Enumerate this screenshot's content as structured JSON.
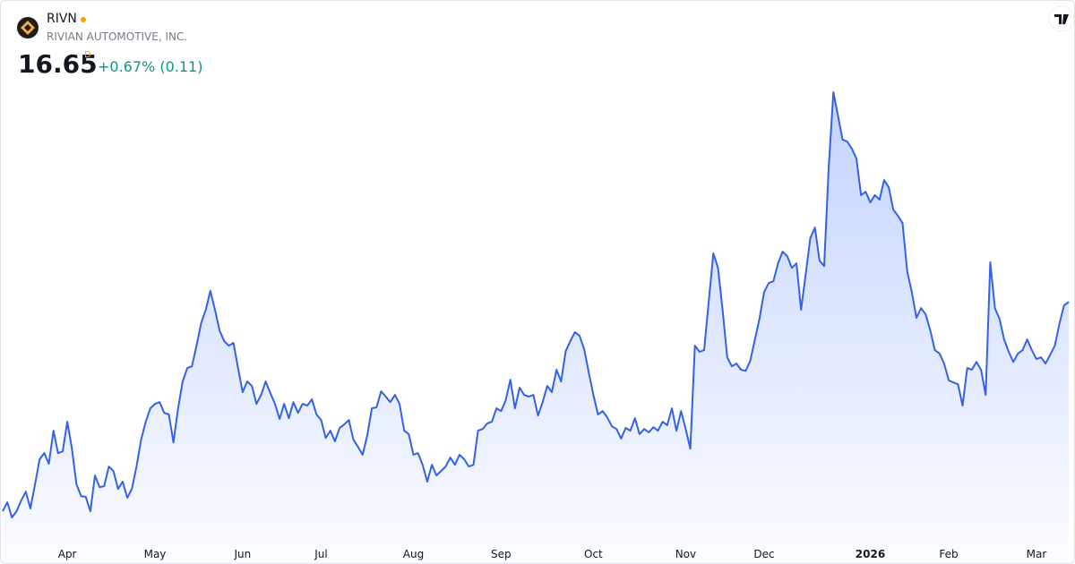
{
  "header": {
    "symbol": "RIVN",
    "name": "RIVIAN AUTOMOTIVE, INC.",
    "price": "16.65",
    "interval": "D",
    "change": "+0.67% (0.11)"
  },
  "chart_data": {
    "type": "area",
    "color": "#3461e6",
    "fill_color": "#2962ff",
    "values": [
      10.57,
      10.83,
      10.39,
      10.57,
      10.88,
      11.14,
      10.65,
      11.35,
      12.08,
      12.26,
      11.95,
      12.91,
      12.26,
      12.31,
      13.17,
      12.39,
      11.35,
      11.01,
      10.99,
      10.57,
      11.61,
      11.27,
      11.3,
      11.87,
      11.74,
      11.22,
      11.43,
      10.96,
      11.22,
      11.87,
      12.65,
      13.17,
      13.56,
      13.69,
      13.74,
      13.43,
      13.38,
      12.57,
      13.56,
      14.34,
      14.73,
      14.78,
      15.38,
      16.03,
      16.42,
      16.97,
      16.42,
      15.82,
      15.51,
      15.38,
      15.46,
      14.73,
      14.03,
      14.34,
      14.21,
      13.69,
      13.95,
      14.34,
      14.0,
      13.69,
      13.25,
      13.69,
      13.27,
      13.74,
      13.43,
      13.69,
      13.64,
      13.82,
      13.38,
      13.22,
      12.7,
      12.91,
      12.6,
      12.99,
      13.09,
      13.22,
      12.65,
      12.44,
      12.21,
      12.78,
      13.56,
      13.59,
      14.05,
      13.9,
      13.74,
      13.95,
      13.69,
      12.91,
      12.81,
      12.21,
      12.26,
      11.92,
      11.43,
      11.92,
      11.61,
      11.74,
      11.87,
      12.13,
      11.92,
      12.21,
      12.08,
      11.87,
      11.92,
      12.91,
      12.96,
      13.12,
      13.17,
      13.56,
      13.48,
      13.79,
      14.39,
      13.56,
      14.16,
      13.95,
      13.9,
      13.95,
      13.35,
      13.74,
      14.21,
      14.03,
      14.68,
      14.34,
      15.22,
      15.51,
      15.77,
      15.67,
      15.28,
      14.6,
      13.95,
      13.38,
      13.48,
      13.3,
      13.04,
      12.96,
      12.68,
      12.99,
      12.91,
      13.27,
      12.81,
      12.96,
      12.86,
      13.01,
      12.91,
      13.17,
      13.07,
      13.56,
      12.91,
      13.48,
      12.96,
      12.39,
      15.38,
      15.2,
      15.25,
      16.68,
      18.06,
      17.64,
      16.42,
      15.04,
      14.78,
      14.86,
      14.68,
      14.65,
      14.94,
      15.56,
      16.16,
      16.94,
      17.2,
      17.25,
      17.77,
      18.11,
      17.98,
      17.64,
      17.77,
      16.42,
      17.46,
      18.5,
      18.81,
      17.85,
      17.69,
      20.58,
      22.74,
      22.06,
      21.36,
      21.31,
      21.1,
      20.81,
      19.75,
      19.85,
      19.54,
      19.75,
      19.62,
      20.19,
      19.98,
      19.33,
      19.15,
      18.94,
      17.54,
      16.94,
      16.19,
      16.47,
      16.29,
      15.82,
      15.25,
      15.15,
      14.86,
      14.37,
      14.31,
      14.26,
      13.64,
      14.73,
      14.68,
      14.91,
      14.68,
      13.95,
      17.8,
      16.47,
      16.16,
      15.56,
      15.2,
      14.91,
      15.15,
      15.25,
      15.56,
      15.25,
      14.99,
      15.04,
      14.86,
      15.12,
      15.38,
      16.03,
      16.55,
      16.65
    ],
    "xticks": [
      {
        "value": 14,
        "label": "Apr"
      },
      {
        "value": 33,
        "label": "May"
      },
      {
        "value": 52,
        "label": "Jun"
      },
      {
        "value": 69,
        "label": "Jul"
      },
      {
        "value": 89,
        "label": "Aug"
      },
      {
        "value": 108,
        "label": "Sep"
      },
      {
        "value": 128,
        "label": "Oct"
      },
      {
        "value": 148,
        "label": "Nov"
      },
      {
        "value": 165,
        "label": "Dec"
      },
      {
        "value": 188,
        "label": "2026",
        "bold": true
      },
      {
        "value": 205,
        "label": "Feb"
      },
      {
        "value": 224,
        "label": "Mar"
      }
    ]
  }
}
